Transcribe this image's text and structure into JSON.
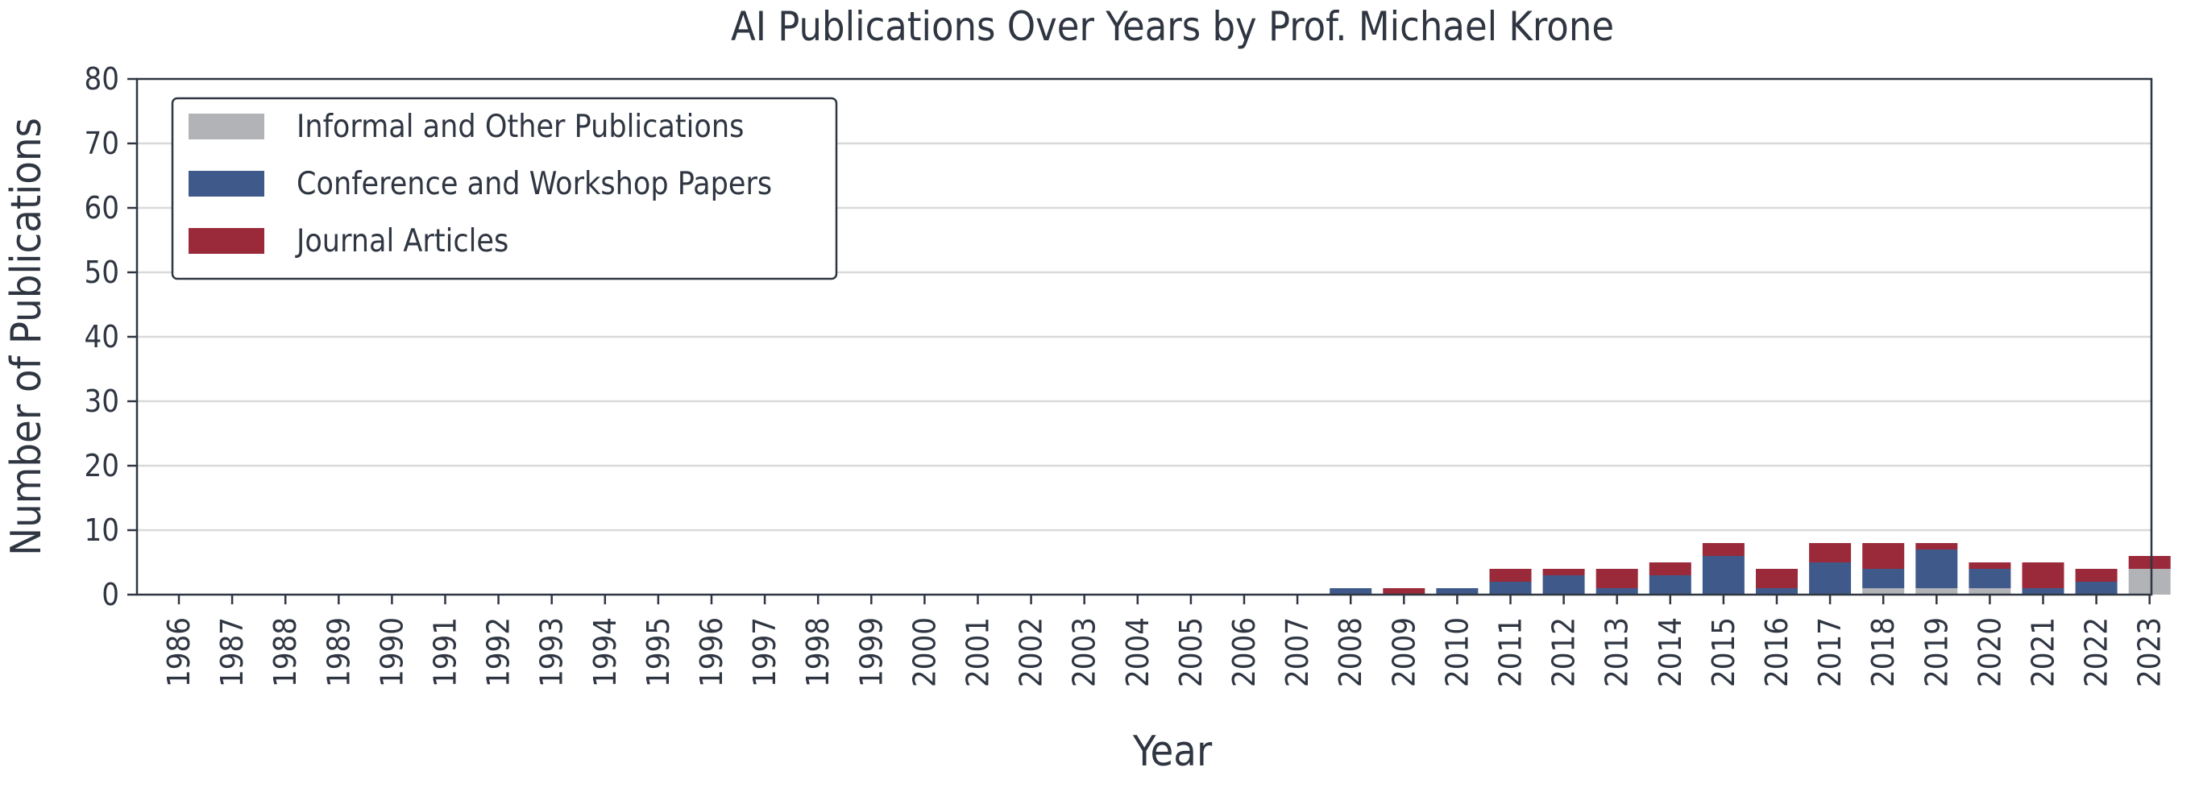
{
  "chart_data": {
    "type": "bar",
    "stacked": true,
    "title": "AI Publications Over Years by Prof. Michael Krone",
    "xlabel": "Year",
    "ylabel": "Number of Publications",
    "ylim": [
      0,
      80
    ],
    "yticks": [
      "0",
      "10",
      "20",
      "30",
      "40",
      "50",
      "60",
      "70",
      "80"
    ],
    "grid": "horizontal",
    "legend_position": "top-left",
    "categories": [
      "1986",
      "1987",
      "1988",
      "1989",
      "1990",
      "1991",
      "1992",
      "1993",
      "1994",
      "1995",
      "1996",
      "1997",
      "1998",
      "1999",
      "2000",
      "2001",
      "2002",
      "2003",
      "2004",
      "2005",
      "2006",
      "2007",
      "2008",
      "2009",
      "2010",
      "2011",
      "2012",
      "2013",
      "2014",
      "2015",
      "2016",
      "2017",
      "2018",
      "2019",
      "2020",
      "2021",
      "2022",
      "2023"
    ],
    "series": [
      {
        "name": "Informal and Other Publications",
        "color": "#b1b3b7",
        "values": [
          0,
          0,
          0,
          0,
          0,
          0,
          0,
          0,
          0,
          0,
          0,
          0,
          0,
          0,
          0,
          0,
          0,
          0,
          0,
          0,
          0,
          0,
          0,
          0,
          0,
          0,
          0,
          0,
          0,
          0,
          0,
          0,
          1,
          1,
          1,
          0,
          0,
          4
        ]
      },
      {
        "name": "Conference and Workshop Papers",
        "color": "#3f5a8a",
        "values": [
          0,
          0,
          0,
          0,
          0,
          0,
          0,
          0,
          0,
          0,
          0,
          0,
          0,
          0,
          0,
          0,
          0,
          0,
          0,
          0,
          0,
          0,
          1,
          0,
          1,
          2,
          3,
          1,
          3,
          6,
          1,
          5,
          3,
          6,
          3,
          1,
          2,
          0
        ]
      },
      {
        "name": "Journal Articles",
        "color": "#9a2a3a",
        "values": [
          0,
          0,
          0,
          0,
          0,
          0,
          0,
          0,
          0,
          0,
          0,
          0,
          0,
          0,
          0,
          0,
          0,
          0,
          0,
          0,
          0,
          0,
          0,
          1,
          0,
          2,
          1,
          3,
          2,
          2,
          3,
          3,
          4,
          1,
          1,
          4,
          2,
          2
        ]
      }
    ]
  }
}
